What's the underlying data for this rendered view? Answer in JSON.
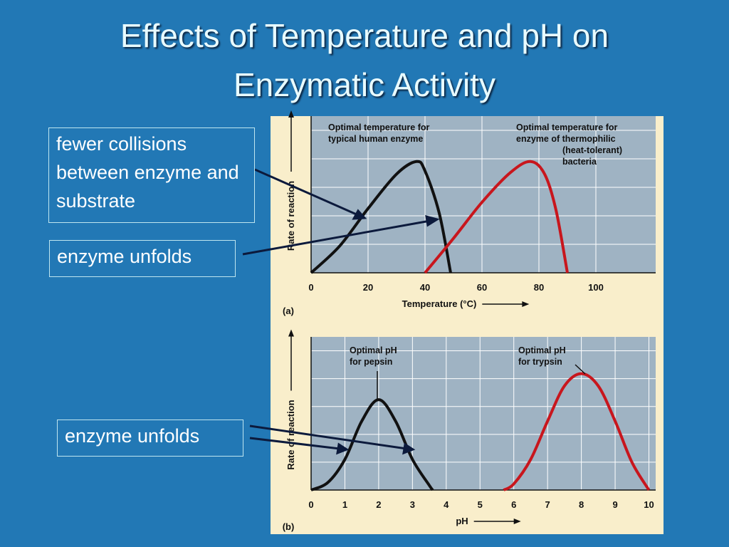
{
  "title": [
    "Effects of Temperature and pH on",
    "Enzymatic Activity"
  ],
  "callouts": [
    "fewer collisions between enzyme and substrate",
    "enzyme unfolds",
    "enzyme unfolds"
  ],
  "chart_data": [
    {
      "type": "line",
      "panel": "(a)",
      "xlabel": "Temperature (°C)",
      "ylabel": "Rate of reaction",
      "xlim": [
        0,
        121
      ],
      "xticks": [
        0,
        20,
        40,
        60,
        80,
        100
      ],
      "ylim": [
        0,
        1
      ],
      "grid": true,
      "annotations": [
        [
          "Optimal temperature for",
          "typical human enzyme"
        ],
        [
          "Optimal temperature for",
          "enzyme of thermophilic",
          "(heat-tolerant)",
          "bacteria"
        ]
      ],
      "series": [
        {
          "color": "#111111",
          "x": [
            0,
            10,
            20,
            30,
            37,
            40,
            45,
            49
          ],
          "values": [
            0,
            0.17,
            0.41,
            0.63,
            0.71,
            0.65,
            0.38,
            0
          ]
        },
        {
          "color": "#c8161d",
          "x": [
            40,
            50,
            60,
            70,
            77,
            82,
            86,
            90
          ],
          "values": [
            0,
            0.22,
            0.45,
            0.64,
            0.71,
            0.63,
            0.4,
            0
          ]
        }
      ]
    },
    {
      "type": "line",
      "panel": "(b)",
      "xlabel": "pH",
      "ylabel": "Rate of reaction",
      "xlim": [
        0,
        10.2
      ],
      "xticks": [
        0,
        1,
        2,
        3,
        4,
        5,
        6,
        7,
        8,
        9,
        10
      ],
      "ylim": [
        0,
        1
      ],
      "grid": true,
      "annotations": [
        [
          "Optimal pH",
          "for pepsin"
        ],
        [
          "Optimal pH",
          "for trypsin"
        ]
      ],
      "series": [
        {
          "color": "#111111",
          "x": [
            0,
            0.5,
            1,
            1.5,
            2,
            2.5,
            3,
            3.5,
            3.6
          ],
          "values": [
            0,
            0.05,
            0.2,
            0.45,
            0.59,
            0.45,
            0.2,
            0.03,
            0
          ]
        },
        {
          "color": "#c8161d",
          "x": [
            5.7,
            6,
            6.5,
            7,
            7.5,
            8,
            8.5,
            9,
            9.5,
            10
          ],
          "values": [
            0,
            0.04,
            0.2,
            0.45,
            0.68,
            0.76,
            0.68,
            0.45,
            0.18,
            0
          ]
        }
      ]
    }
  ]
}
